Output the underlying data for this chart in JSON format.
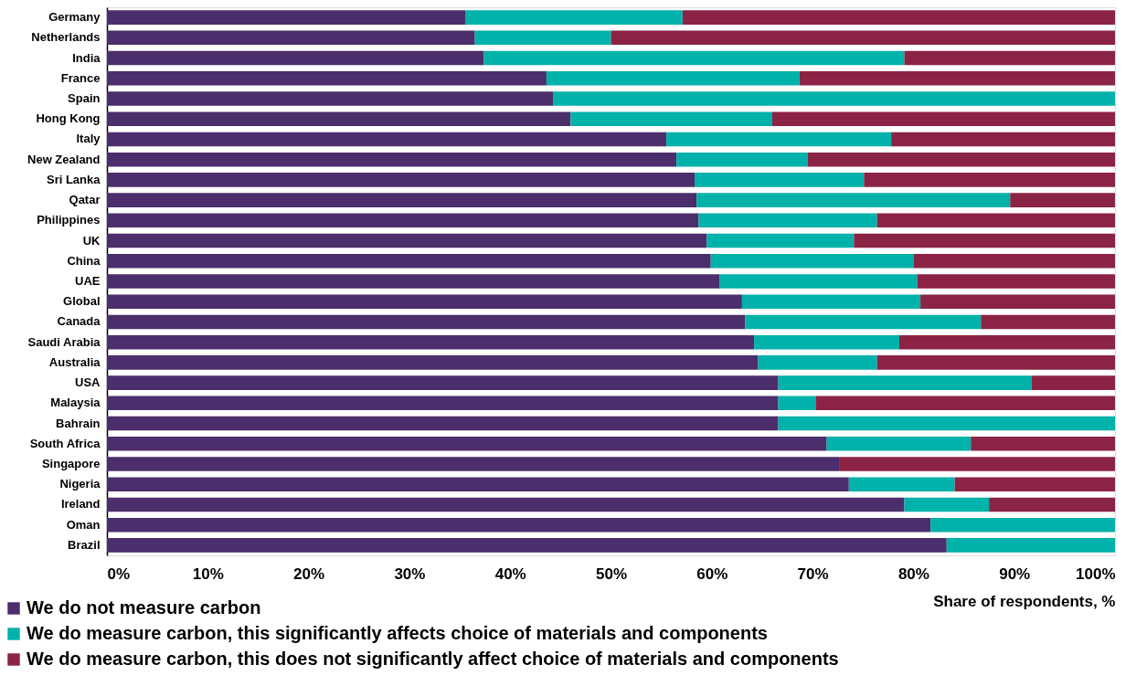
{
  "chart_data": {
    "type": "bar",
    "orientation": "horizontal",
    "stacked": true,
    "xlabel": "Share of respondents, %",
    "categories": [
      "Germany",
      "Netherlands",
      "India",
      "France",
      "Spain",
      "Hong Kong",
      "Italy",
      "New Zealand",
      "Sri Lanka",
      "Qatar",
      "Philippines",
      "UK",
      "China",
      "UAE",
      "Global",
      "Canada",
      "Saudi Arabia",
      "Australia",
      "USA",
      "Malaysia",
      "Bahrain",
      "South Africa",
      "Singapore",
      "Nigeria",
      "Ireland",
      "Oman",
      "Brazil"
    ],
    "series": [
      {
        "name": "We do not measure carbon",
        "color": "#4b2e6b",
        "values": [
          35.6,
          36.5,
          37.4,
          43.6,
          44.3,
          46.0,
          55.5,
          56.5,
          58.3,
          58.5,
          58.7,
          59.5,
          59.9,
          60.8,
          63.0,
          63.3,
          64.2,
          64.6,
          66.6,
          66.6,
          66.6,
          71.4,
          72.7,
          73.6,
          79.1,
          81.7,
          83.3
        ]
      },
      {
        "name": "We do measure carbon, this significantly affects choice of materials and components",
        "color": "#00b2a9",
        "values": [
          21.5,
          13.5,
          41.7,
          25.1,
          55.7,
          20.0,
          22.3,
          13.0,
          16.8,
          31.1,
          17.7,
          14.6,
          20.1,
          19.6,
          17.7,
          23.4,
          14.4,
          11.8,
          25.1,
          3.7,
          33.4,
          14.3,
          0,
          10.5,
          8.4,
          18.3,
          16.7
        ]
      },
      {
        "name": "We do measure carbon, this does not significantly affect choice of materials and components",
        "color": "#8b2344",
        "values": [
          42.9,
          50.0,
          20.9,
          31.3,
          0,
          34.0,
          22.2,
          30.5,
          24.9,
          10.4,
          23.6,
          25.9,
          20.0,
          19.6,
          19.3,
          13.3,
          21.4,
          23.6,
          8.3,
          29.7,
          0,
          14.3,
          27.3,
          15.9,
          12.5,
          0,
          0
        ]
      }
    ],
    "xlim": [
      0,
      100
    ],
    "xticks": [
      {
        "value": 0,
        "label": "0%"
      },
      {
        "value": 10,
        "label": "10%"
      },
      {
        "value": 20,
        "label": "20%"
      },
      {
        "value": 30,
        "label": "30%"
      },
      {
        "value": 40,
        "label": "40%"
      },
      {
        "value": 50,
        "label": "50%"
      },
      {
        "value": 60,
        "label": "60%"
      },
      {
        "value": 70,
        "label": "70%"
      },
      {
        "value": 80,
        "label": "80%"
      },
      {
        "value": 90,
        "label": "90%"
      },
      {
        "value": 100,
        "label": "100%"
      }
    ],
    "grid": false,
    "legend": "bottom left"
  }
}
